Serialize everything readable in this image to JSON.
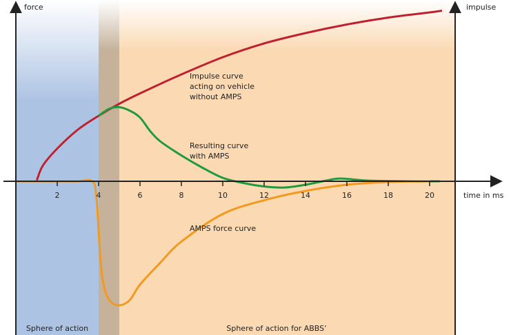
{
  "chart_data": {
    "type": "line",
    "y_axis_label": "force",
    "y2_axis_label": "impulse",
    "x_axis_label": "time in ms",
    "xlim": [
      0,
      21.2
    ],
    "xticks": [
      2,
      4,
      6,
      8,
      10,
      12,
      14,
      16,
      18,
      20
    ],
    "ylim": [
      -0.9,
      1
    ],
    "bands": [
      {
        "start": 0,
        "end": 4,
        "color": "#adc3e3"
      },
      {
        "start": 4,
        "end": 5,
        "color": "#c6b29b"
      },
      {
        "start": 5,
        "end": 21.2,
        "color": "#fbd9b3"
      }
    ],
    "band_labels": [
      {
        "text": "Sphere of action",
        "start": 0,
        "end": 4
      },
      {
        "text": "Sphere of action for ABBS’",
        "start": 4,
        "end": 21.2
      }
    ],
    "series": [
      {
        "name": "Impulse curve acting on vehicle without AMPS",
        "color": "#c0202e",
        "x": [
          1,
          1.3,
          2,
          3,
          4,
          5,
          6,
          8,
          10,
          12,
          14,
          16,
          18,
          20,
          20.6
        ],
        "values": [
          0,
          0.09,
          0.19,
          0.3,
          0.38,
          0.45,
          0.51,
          0.62,
          0.72,
          0.8,
          0.86,
          0.91,
          0.95,
          0.98,
          0.99
        ]
      },
      {
        "name": "Resulting curve with AMPS",
        "color": "#1f9a3c",
        "x": [
          4,
          4.5,
          5,
          5.5,
          6,
          6.5,
          7,
          8,
          9,
          10,
          11,
          12,
          13,
          14,
          15,
          15.7,
          17,
          19,
          20.5
        ],
        "values": [
          0.38,
          0.42,
          0.43,
          0.41,
          0.37,
          0.29,
          0.23,
          0.15,
          0.08,
          0.02,
          -0.01,
          -0.03,
          -0.036,
          -0.02,
          0.004,
          0.016,
          0.004,
          0,
          0
        ]
      },
      {
        "name": "AMPS force curve",
        "color": "#f29a1f",
        "x": [
          0,
          1,
          2,
          3,
          3.7,
          3.9,
          4.1,
          4.3,
          4.6,
          5,
          5.5,
          6,
          7,
          8,
          10,
          12,
          14,
          16,
          18,
          20
        ],
        "values": [
          0,
          0,
          0,
          0,
          0,
          -0.1,
          -0.47,
          -0.63,
          -0.7,
          -0.72,
          -0.69,
          -0.6,
          -0.47,
          -0.35,
          -0.19,
          -0.11,
          -0.056,
          -0.02,
          -0.004,
          0
        ]
      }
    ],
    "annotations": [
      {
        "lines": [
          "Impulse curve",
          "acting on vehicle",
          "without AMPS"
        ]
      },
      {
        "lines": [
          "Resulting curve",
          "with AMPS"
        ]
      },
      {
        "lines": [
          "AMPS force curve"
        ]
      }
    ]
  }
}
